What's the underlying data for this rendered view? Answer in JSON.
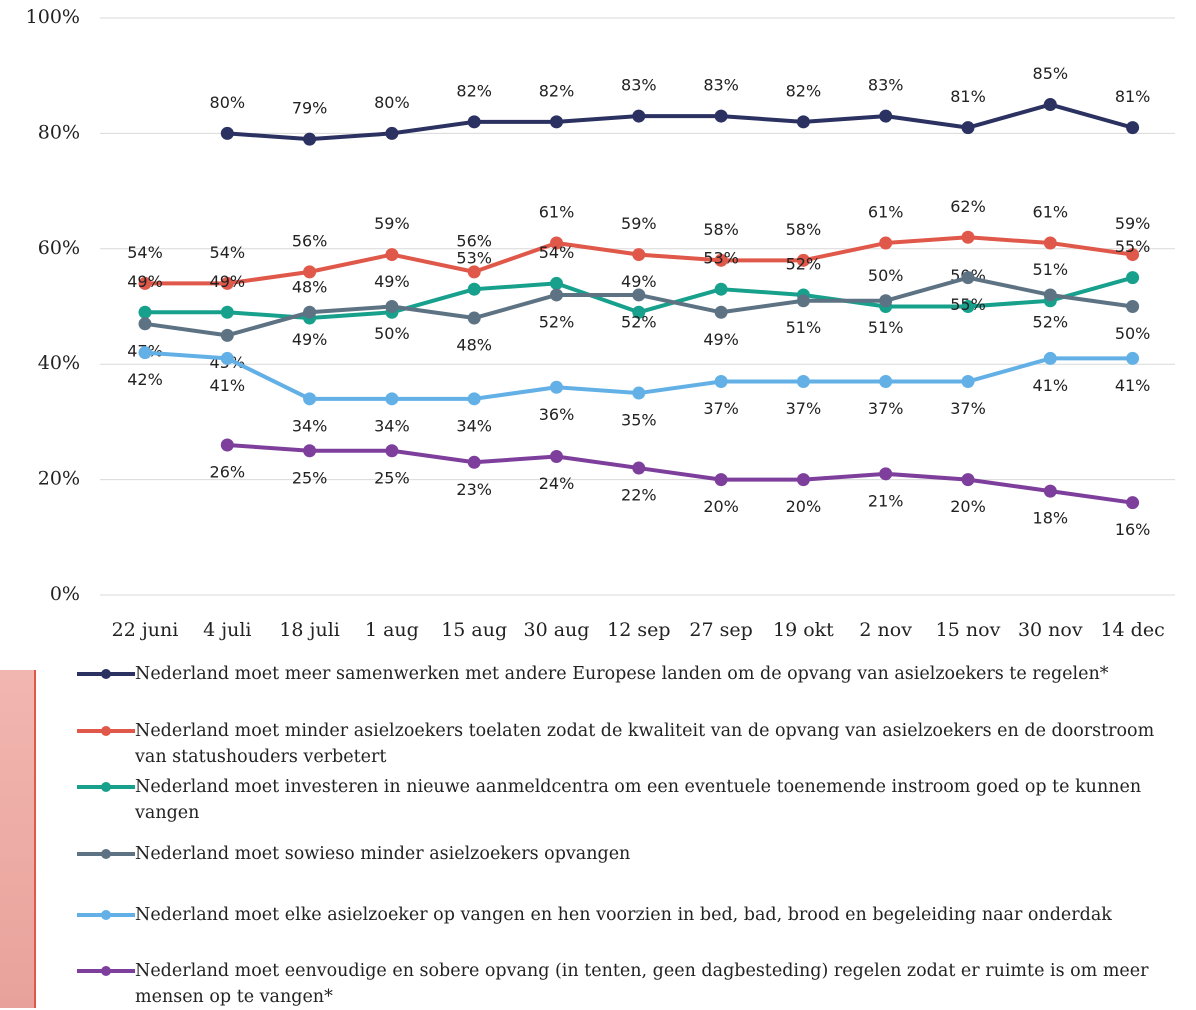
{
  "chart_data": {
    "type": "line",
    "categories": [
      "22 juni",
      "4 juli",
      "18 juli",
      "1 aug",
      "15 aug",
      "30 aug",
      "12 sep",
      "27 sep",
      "19 okt",
      "2 nov",
      "15 nov",
      "30 nov",
      "14 dec"
    ],
    "ylim": [
      0,
      100
    ],
    "yticks": [
      {
        "value": 0,
        "label": "0%"
      },
      {
        "value": 20,
        "label": "20%"
      },
      {
        "value": 40,
        "label": "40%"
      },
      {
        "value": 60,
        "label": "60%"
      },
      {
        "value": 80,
        "label": "80%"
      },
      {
        "value": 100,
        "label": "100%"
      }
    ],
    "grid": true,
    "series": [
      {
        "name": "Nederland moet meer samenwerken met andere Europese landen om de opvang van asielzoekers te regelen*",
        "color": "#2b3160",
        "values": [
          null,
          80,
          79,
          80,
          82,
          82,
          83,
          83,
          82,
          83,
          81,
          85,
          81
        ],
        "value_labels": [
          null,
          "80%",
          "79%",
          "80%",
          "82%",
          "82%",
          "83%",
          "83%",
          "82%",
          "83%",
          "81%",
          "85%",
          "81%"
        ]
      },
      {
        "name": "Nederland moet minder asielzoekers toelaten zodat de kwaliteit van de opvang van asielzoekers en de doorstroom van statushouders verbetert",
        "color": "#e0584a",
        "values": [
          54,
          54,
          56,
          59,
          56,
          61,
          59,
          58,
          58,
          61,
          62,
          61,
          59
        ],
        "value_labels": [
          "54%",
          "54%",
          "56%",
          "59%",
          "56%",
          "61%",
          "59%",
          "58%",
          "58%",
          "61%",
          "62%",
          "61%",
          "59%"
        ]
      },
      {
        "name": "Nederland moet investeren in nieuwe aanmeldcentra om een eventuele toenemende instroom goed op te kunnen vangen",
        "color": "#17a08b",
        "values": [
          49,
          49,
          48,
          49,
          53,
          54,
          49,
          53,
          52,
          50,
          50,
          51,
          55
        ],
        "value_labels": [
          "49%",
          "49%",
          "48%",
          "49%",
          "53%",
          "54%",
          "49%",
          "53%",
          "52%",
          "50%",
          "50%",
          "51%",
          "55%"
        ]
      },
      {
        "name": "Nederland moet sowieso minder asielzoekers opvangen",
        "color": "#5d7384",
        "values": [
          47,
          45,
          49,
          50,
          48,
          52,
          52,
          49,
          51,
          51,
          55,
          52,
          50
        ],
        "value_labels": [
          "47%",
          "45%",
          "49%",
          "50%",
          "48%",
          "52%",
          "52%",
          "49%",
          "51%",
          "51%",
          "55%",
          "52%",
          "50%"
        ]
      },
      {
        "name": "Nederland moet elke asielzoeker op vangen en hen voorzien in bed, bad, brood en begeleiding naar onderdak",
        "color": "#62b0e6",
        "values": [
          42,
          41,
          34,
          34,
          34,
          36,
          35,
          37,
          37,
          37,
          37,
          41,
          41
        ],
        "value_labels": [
          "42%",
          "41%",
          "34%",
          "34%",
          "34%",
          "36%",
          "35%",
          "37%",
          "37%",
          "37%",
          "37%",
          "41%",
          "41%"
        ]
      },
      {
        "name": "Nederland moet eenvoudige en sobere opvang (in tenten, geen dagbesteding) regelen zodat er ruimte is om meer mensen op te vangen*",
        "color": "#7e3f9c",
        "values": [
          null,
          26,
          25,
          25,
          23,
          24,
          22,
          20,
          20,
          21,
          20,
          18,
          16
        ],
        "value_labels": [
          null,
          "26%",
          "25%",
          "25%",
          "23%",
          "24%",
          "22%",
          "20%",
          "20%",
          "21%",
          "20%",
          "18%",
          "16%"
        ]
      }
    ]
  }
}
